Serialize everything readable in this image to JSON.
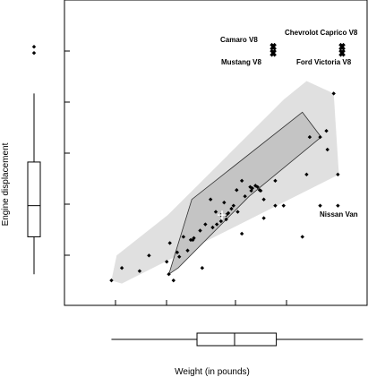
{
  "chart_data": {
    "type": "scatter",
    "subtype": "bagplot with marginal boxplots",
    "xlabel": "Weight (in pounds)",
    "ylabel": "Engine displacement",
    "xlim": [
      1500,
      4400
    ],
    "ylim": [
      40,
      530
    ],
    "tick_labels_shown": false,
    "grid": false,
    "colors": {
      "fence": "#e0e0e0",
      "bag": "#c4c4c4",
      "bag_edge": "#333333",
      "points": "#000000",
      "background": "#ffffff"
    },
    "points": [
      [
        1950,
        80
      ],
      [
        2050,
        100
      ],
      [
        2220,
        95
      ],
      [
        2310,
        120
      ],
      [
        2510,
        140
      ],
      [
        2480,
        110
      ],
      [
        2580,
        125
      ],
      [
        2640,
        150
      ],
      [
        2710,
        145
      ],
      [
        2920,
        165
      ],
      [
        2820,
        100
      ],
      [
        3200,
        155
      ],
      [
        2500,
        90
      ],
      [
        2545,
        80
      ],
      [
        2600,
        118
      ],
      [
        2680,
        128
      ],
      [
        2740,
        148
      ],
      [
        2960,
        170
      ],
      [
        3050,
        185
      ],
      [
        3120,
        200
      ],
      [
        3200,
        240
      ],
      [
        3230,
        215
      ],
      [
        3300,
        228
      ],
      [
        3350,
        230
      ],
      [
        3290,
        224
      ],
      [
        3380,
        224
      ],
      [
        3410,
        210
      ],
      [
        3520,
        200
      ],
      [
        3600,
        200
      ],
      [
        3280,
        230
      ],
      [
        3330,
        232
      ],
      [
        3150,
        225
      ],
      [
        3100,
        195
      ],
      [
        3050,
        178
      ],
      [
        3000,
        185
      ],
      [
        2950,
        190
      ],
      [
        2900,
        210
      ],
      [
        3030,
        205
      ],
      [
        3070,
        188
      ],
      [
        2800,
        160
      ],
      [
        3820,
        250
      ],
      [
        3850,
        310
      ],
      [
        3780,
        150
      ],
      [
        3950,
        310
      ],
      [
        4020,
        290
      ],
      [
        4010,
        320
      ],
      [
        4080,
        380
      ],
      [
        4120,
        250
      ],
      [
        3950,
        200
      ],
      [
        2850,
        170
      ],
      [
        3000,
        175
      ],
      [
        3160,
        190
      ],
      [
        3370,
        225
      ],
      [
        3410,
        180
      ],
      [
        3520,
        240
      ],
      [
        2730,
        145
      ]
    ],
    "outliers": [
      {
        "label": "Camaro V8",
        "x": 3500,
        "y": 455
      },
      {
        "label": "Mustang V8",
        "x": 3500,
        "y": 445
      },
      {
        "label": "Chevrolot Caprico V8",
        "x": 4160,
        "y": 455
      },
      {
        "label": "Ford Victoria V8",
        "x": 4160,
        "y": 445
      },
      {
        "label": "Nissan Van",
        "x": 4120,
        "y": 200
      }
    ],
    "depth_median": {
      "x": 3010,
      "y": 185
    },
    "bag_polygon": [
      [
        2500,
        90
      ],
      [
        2590,
        100
      ],
      [
        3270,
        215
      ],
      [
        3960,
        310
      ],
      [
        3780,
        350
      ],
      [
        2720,
        210
      ]
    ],
    "fence_polygon": [
      [
        1950,
        80
      ],
      [
        2050,
        75
      ],
      [
        4130,
        250
      ],
      [
        4080,
        380
      ],
      [
        3820,
        400
      ],
      [
        3600,
        370
      ],
      [
        2490,
        185
      ],
      [
        2000,
        120
      ]
    ],
    "x_boxplot": {
      "min": 1950,
      "q1": 2770,
      "median": 3130,
      "q3": 3530,
      "max": 4360
    },
    "y_boxplot": {
      "min": 90,
      "q1": 150,
      "median": 200,
      "q3": 270,
      "max": 380,
      "outliers": [
        455,
        445
      ]
    }
  }
}
